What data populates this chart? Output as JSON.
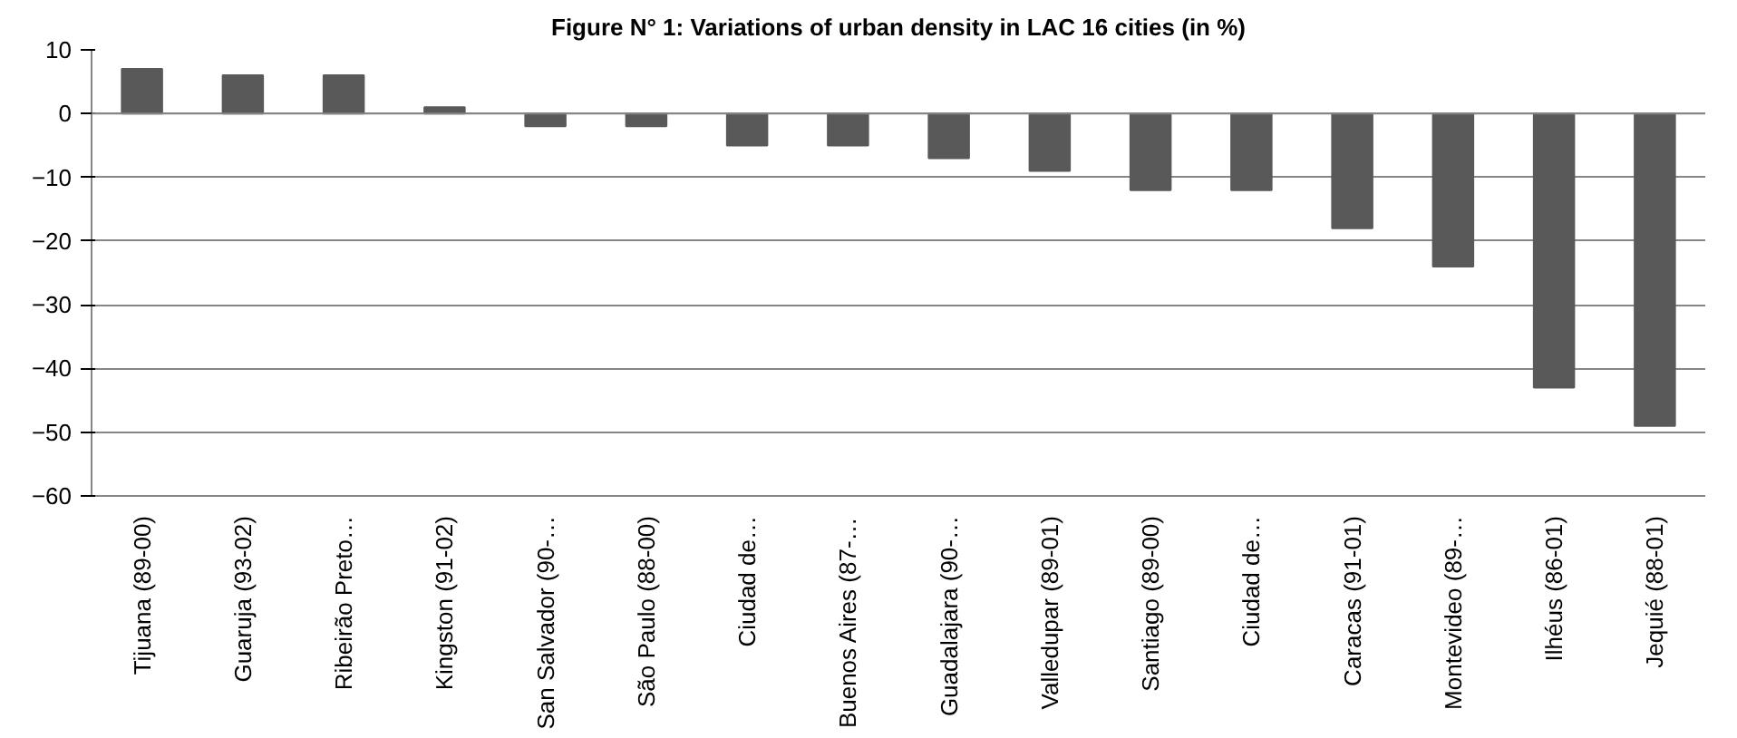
{
  "chart_data": {
    "type": "bar",
    "title": "Figure N° 1: Variations of urban density in LAC 16 cities (in %)",
    "categories": [
      "Tijuana (89-00)",
      "Guaruja (93-02)",
      "Ribeirão Preto…",
      "Kingston (91-02)",
      "San Salvador (90-…",
      "São Paulo (88-00)",
      "Ciudad de…",
      "Buenos Aires (87-…",
      "Guadalajara (90-…",
      "Valledupar (89-01)",
      "Santiago (89-00)",
      "Ciudad de…",
      "Caracas (91-01)",
      "Montevideo (89-…",
      "Ilhéus (86-01)",
      "Jequié (88-01)"
    ],
    "values": [
      7,
      6,
      6,
      1,
      -2,
      -2,
      -5,
      -5,
      -7,
      -9,
      -12,
      -12,
      -18,
      -24,
      -43,
      -49
    ],
    "color": "#595959",
    "ylim": [
      -60,
      10
    ],
    "yticks": [
      -60,
      -50,
      -40,
      -30,
      -20,
      -10,
      0,
      10
    ],
    "grid": "y"
  }
}
